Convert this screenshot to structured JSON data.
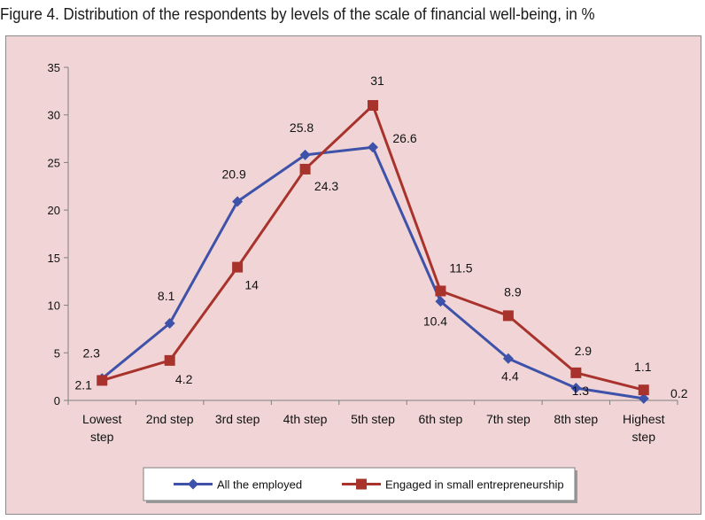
{
  "figure_title": "Figure 4. Distribution of the respondents by levels of the scale of financial well-being, in %",
  "chart_data": {
    "type": "line",
    "title": "",
    "xlabel": "",
    "ylabel": "",
    "categories": [
      [
        "Lowest",
        "step"
      ],
      [
        "2nd step"
      ],
      [
        "3rd step"
      ],
      [
        "4th step"
      ],
      [
        "5th step"
      ],
      [
        "6th step"
      ],
      [
        "7th step"
      ],
      [
        "8th step"
      ],
      [
        "Highest",
        "step"
      ]
    ],
    "ylim": [
      0,
      35
    ],
    "yticks": [
      0,
      5,
      10,
      15,
      20,
      25,
      30,
      35
    ],
    "grid": false,
    "legend_position": "bottom",
    "series": [
      {
        "name": "All the employed",
        "color": "#3d52a8",
        "marker": "diamond",
        "values": [
          2.3,
          8.1,
          20.9,
          25.8,
          26.6,
          10.4,
          4.4,
          1.3,
          0.2
        ],
        "labels": [
          "2.3",
          "8.1",
          "20.9",
          "25.8",
          "26.6",
          "10.4",
          "4.4",
          "1.3",
          "0.2"
        ]
      },
      {
        "name": "Engaged in small entrepreneurship",
        "color": "#a8322c",
        "marker": "square",
        "values": [
          2.1,
          4.2,
          14,
          24.3,
          31,
          11.5,
          8.9,
          2.9,
          1.1
        ],
        "labels": [
          "2.1",
          "4.2",
          "14",
          "24.3",
          "31",
          "11.5",
          "8.9",
          "2.9",
          "1.1"
        ]
      }
    ]
  }
}
